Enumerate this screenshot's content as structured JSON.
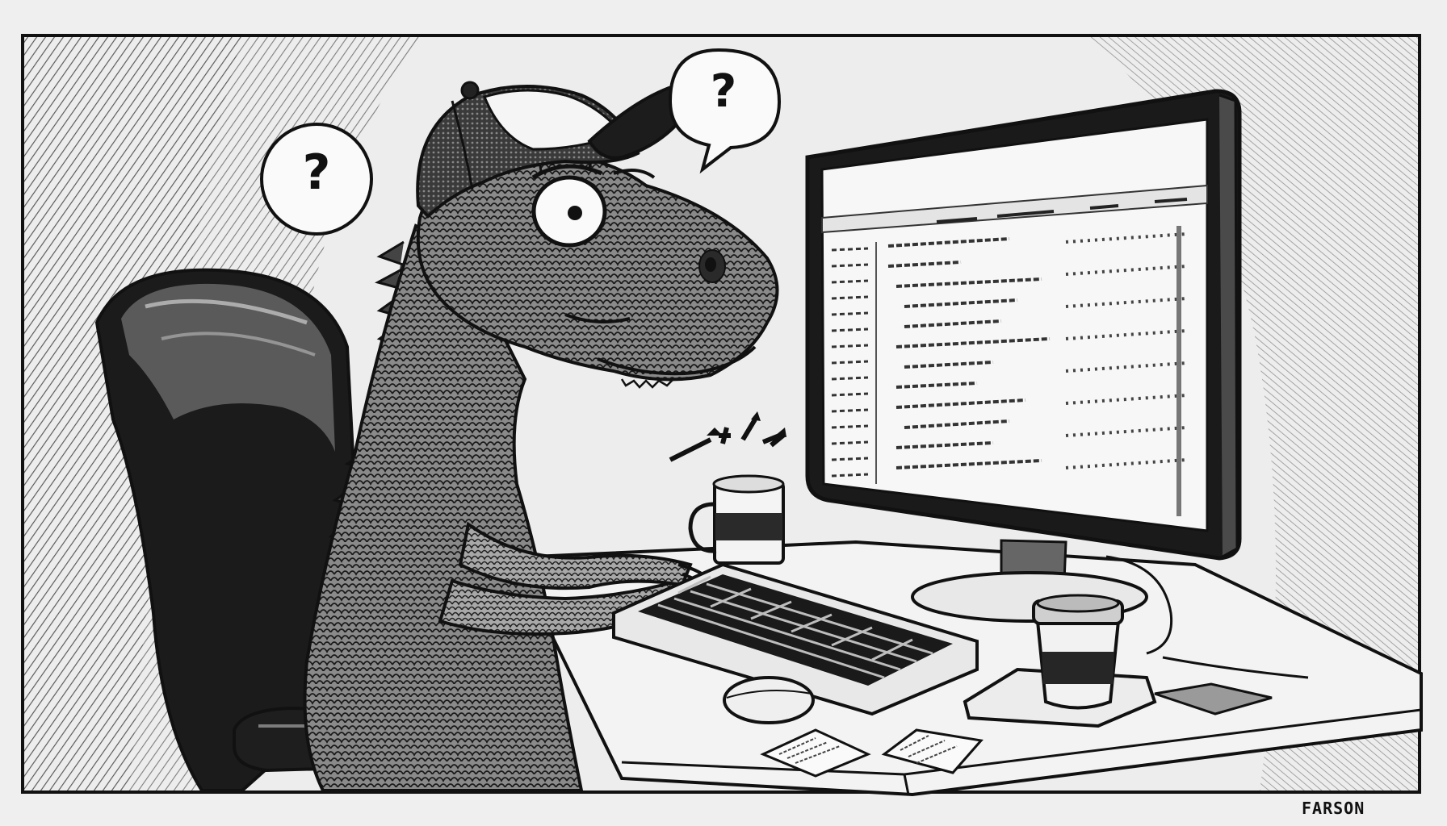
{
  "scene": {
    "signature": "FARSON",
    "thought_bubbles": [
      {
        "text": "?"
      },
      {
        "text": "?"
      }
    ],
    "icons": {
      "character": "dinosaur-icon",
      "cap": "baseball-cap-icon",
      "chair": "office-chair-icon",
      "monitor": "computer-monitor-icon",
      "keyboard": "keyboard-icon",
      "mouse": "mouse-icon",
      "pencil_cup": "pencil-cup-icon",
      "coffee": "coffee-cup-icon",
      "notes": "sticky-note-icon"
    },
    "palette": {
      "ink": "#111111",
      "paper": "#efefef",
      "screen": "#f7f7f7"
    }
  }
}
